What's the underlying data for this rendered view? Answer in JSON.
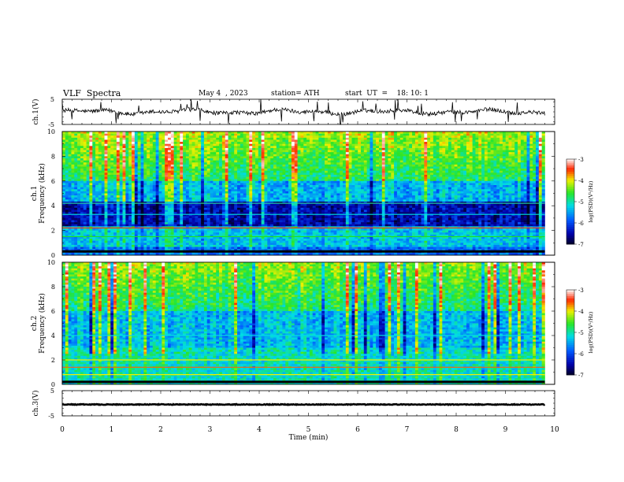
{
  "header": {
    "title": "VLF  Spectra",
    "date": "May 4  , 2023",
    "station": "station= ATH",
    "start": "start  UT  =    18: 10: 1"
  },
  "chart_data": [
    {
      "type": "line",
      "panel": "ch1-waveform",
      "ylabel": "ch.1(V)",
      "yticks": [
        "5",
        "-5"
      ],
      "ylim": [
        -5,
        5
      ],
      "xlim": [
        0,
        10
      ],
      "note_data_extent_min": 9.8
    },
    {
      "type": "heatmap",
      "panel": "ch1-spectrogram",
      "ylabel": "ch.1\nFrequency (kHz)",
      "ylabel_lines": [
        "ch.1",
        "Frequency (kHz)"
      ],
      "yticks": [
        "0",
        "2",
        "4",
        "6",
        "8",
        "10"
      ],
      "ylim": [
        0,
        10
      ],
      "xlim": [
        0,
        10
      ],
      "colorbar": {
        "label": "log(PSD)(V²/Hz)",
        "ticks": [
          "-3",
          "-4",
          "-5",
          "-6",
          "-7"
        ],
        "range": [
          -7,
          -3
        ]
      }
    },
    {
      "type": "heatmap",
      "panel": "ch2-spectrogram",
      "ylabel": "ch.2\nFrequency (kHz)",
      "ylabel_lines": [
        "ch.2",
        "Frequency (kHz)"
      ],
      "yticks": [
        "0",
        "2",
        "4",
        "6",
        "8",
        "10"
      ],
      "ylim": [
        0,
        10
      ],
      "xlim": [
        0,
        10
      ],
      "colorbar": {
        "label": "log(PSD)(V²/Hz)",
        "ticks": [
          "-3",
          "-4",
          "-5",
          "-6",
          "-7"
        ],
        "range": [
          -7,
          -3
        ]
      }
    },
    {
      "type": "line",
      "panel": "ch3-waveform",
      "ylabel": "ch.3(V)",
      "yticks": [
        "5",
        "-5"
      ],
      "ylim": [
        -5,
        5
      ],
      "xlim": [
        0,
        10
      ]
    }
  ],
  "xaxis": {
    "label": "Time  (min)",
    "ticks": [
      "0",
      "1",
      "2",
      "3",
      "4",
      "5",
      "6",
      "7",
      "8",
      "9",
      "10"
    ]
  },
  "colors": {
    "axis": "#000000",
    "trace": "#000000",
    "cmap": [
      "#000033",
      "#0000c8",
      "#0070ff",
      "#00e0e0",
      "#20e020",
      "#f0f000",
      "#ff2000",
      "#ffffff"
    ]
  }
}
